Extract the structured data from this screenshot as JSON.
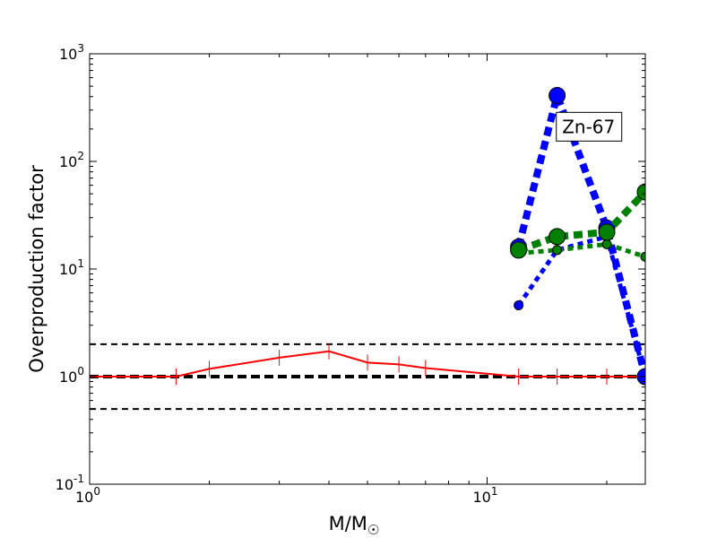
{
  "chart_data": {
    "type": "line",
    "xscale": "log",
    "yscale": "log",
    "xlim": [
      1,
      25
    ],
    "ylim": [
      0.1,
      1000
    ],
    "xlabel": "M/M",
    "xlabel_sub": "☉",
    "ylabel": "Overproduction factor",
    "x_ticks": [
      {
        "value": 1,
        "base": "10",
        "exp": "0"
      },
      {
        "value": 10,
        "base": "10",
        "exp": "1"
      }
    ],
    "y_ticks": [
      {
        "value": 0.1,
        "base": "10",
        "exp": "-1"
      },
      {
        "value": 1,
        "base": "10",
        "exp": "0"
      },
      {
        "value": 10,
        "base": "10",
        "exp": "1"
      },
      {
        "value": 100,
        "base": "10",
        "exp": "2"
      },
      {
        "value": 1000,
        "base": "10",
        "exp": "3"
      }
    ],
    "grid": false,
    "annotation": {
      "text": "Zn-67",
      "x": 18.0,
      "y": 210
    },
    "reference_lines": [
      {
        "y": 2.0,
        "style": "dashed",
        "weight": "thin",
        "color": "#000000"
      },
      {
        "y": 1.0,
        "style": "dashed",
        "weight": "thick",
        "color": "#000000"
      },
      {
        "y": 0.5,
        "style": "dashed",
        "weight": "thin",
        "color": "#000000"
      }
    ],
    "series": [
      {
        "color": "#ff0000",
        "style": "solid",
        "marker": "vline",
        "x": [
          1.0,
          1.65,
          2.0,
          3.0,
          4.0,
          5.0,
          6.0,
          7.0,
          12.0,
          15.0,
          20.0,
          25.0
        ],
        "y": [
          1.0,
          1.0,
          1.18,
          1.5,
          1.72,
          1.35,
          1.3,
          1.2,
          1.0,
          1.0,
          1.0,
          1.0
        ]
      },
      {
        "color": "#0000ff",
        "style": "dotted",
        "weight": "thin",
        "marker": "circle-small",
        "x": [
          12,
          15,
          20,
          25
        ],
        "y": [
          4.6,
          15.0,
          20.0,
          1.0
        ]
      },
      {
        "color": "#0000ff",
        "style": "dotted",
        "weight": "thick",
        "marker": "circle-large",
        "x": [
          12,
          15,
          20,
          25
        ],
        "y": [
          16.0,
          410,
          24.0,
          1.0
        ]
      },
      {
        "color": "#008000",
        "style": "dotted",
        "weight": "thin",
        "marker": "circle-small",
        "x": [
          12,
          15,
          20,
          25
        ],
        "y": [
          14.0,
          15.0,
          17.0,
          13.0
        ]
      },
      {
        "color": "#008000",
        "style": "dotted",
        "weight": "thick",
        "marker": "circle-large",
        "x": [
          12,
          15,
          20,
          25
        ],
        "y": [
          15.0,
          20.0,
          22.0,
          52.0
        ]
      }
    ]
  }
}
